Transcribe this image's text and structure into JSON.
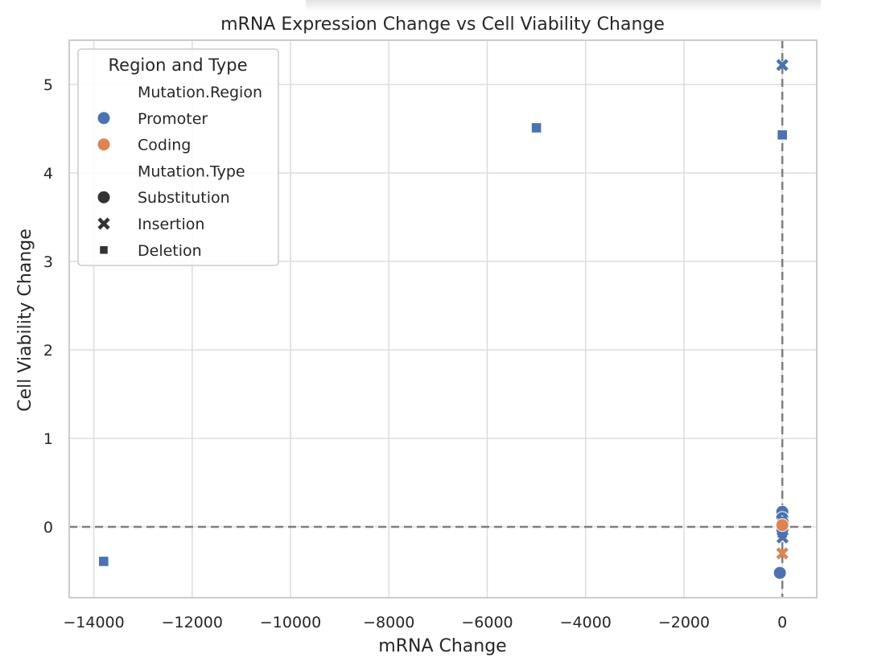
{
  "chart_data": {
    "type": "scatter",
    "title": "mRNA Expression Change vs Cell Viability Change",
    "xlabel": "mRNA Change",
    "ylabel": "Cell Viability Change",
    "xlim": [
      -14500,
      700
    ],
    "ylim": [
      -0.8,
      5.5
    ],
    "xticks": [
      -14000,
      -12000,
      -10000,
      -8000,
      -6000,
      -4000,
      -2000,
      0
    ],
    "xtick_labels": [
      "−14000",
      "−12000",
      "−10000",
      "−8000",
      "−6000",
      "−4000",
      "−2000",
      "0"
    ],
    "yticks": [
      0,
      1,
      2,
      3,
      4,
      5
    ],
    "ytick_labels": [
      "0",
      "1",
      "2",
      "3",
      "4",
      "5"
    ],
    "grid": true,
    "reference_lines": {
      "x": 0,
      "y": 0,
      "style": "dashed"
    },
    "legend": {
      "title": "Region and Type",
      "placement": "top-left",
      "hue_title": "Mutation.Region",
      "hue_entries": [
        {
          "label": "Promoter",
          "color": "#4c72b0"
        },
        {
          "label": "Coding",
          "color": "#dd8452"
        }
      ],
      "style_title": "Mutation.Type",
      "style_entries": [
        {
          "label": "Substitution",
          "marker": "circle"
        },
        {
          "label": "Insertion",
          "marker": "x"
        },
        {
          "label": "Deletion",
          "marker": "square"
        }
      ]
    },
    "points": [
      {
        "x": 0,
        "y": 5.22,
        "region": "Promoter",
        "type": "Insertion"
      },
      {
        "x": -5000,
        "y": 4.51,
        "region": "Promoter",
        "type": "Deletion"
      },
      {
        "x": 0,
        "y": 4.43,
        "region": "Promoter",
        "type": "Deletion"
      },
      {
        "x": -13800,
        "y": -0.39,
        "region": "Promoter",
        "type": "Deletion"
      },
      {
        "x": -50,
        "y": -0.52,
        "region": "Promoter",
        "type": "Substitution"
      },
      {
        "x": 0,
        "y": -0.3,
        "region": "Coding",
        "type": "Insertion"
      },
      {
        "x": 0,
        "y": -0.07,
        "region": "Promoter",
        "type": "Deletion"
      },
      {
        "x": 0,
        "y": 0.17,
        "region": "Promoter",
        "type": "Substitution"
      },
      {
        "x": 0,
        "y": 0.1,
        "region": "Promoter",
        "type": "Substitution"
      },
      {
        "x": 10,
        "y": 0.05,
        "region": "Promoter",
        "type": "Substitution"
      },
      {
        "x": -10,
        "y": 0.0,
        "region": "Promoter",
        "type": "Substitution"
      },
      {
        "x": 0,
        "y": -0.03,
        "region": "Promoter",
        "type": "Substitution"
      },
      {
        "x": 5,
        "y": -0.12,
        "region": "Promoter",
        "type": "Insertion"
      },
      {
        "x": -5,
        "y": 0.08,
        "region": "Promoter",
        "type": "Insertion"
      },
      {
        "x": 0,
        "y": 0.02,
        "region": "Coding",
        "type": "Substitution"
      }
    ]
  }
}
